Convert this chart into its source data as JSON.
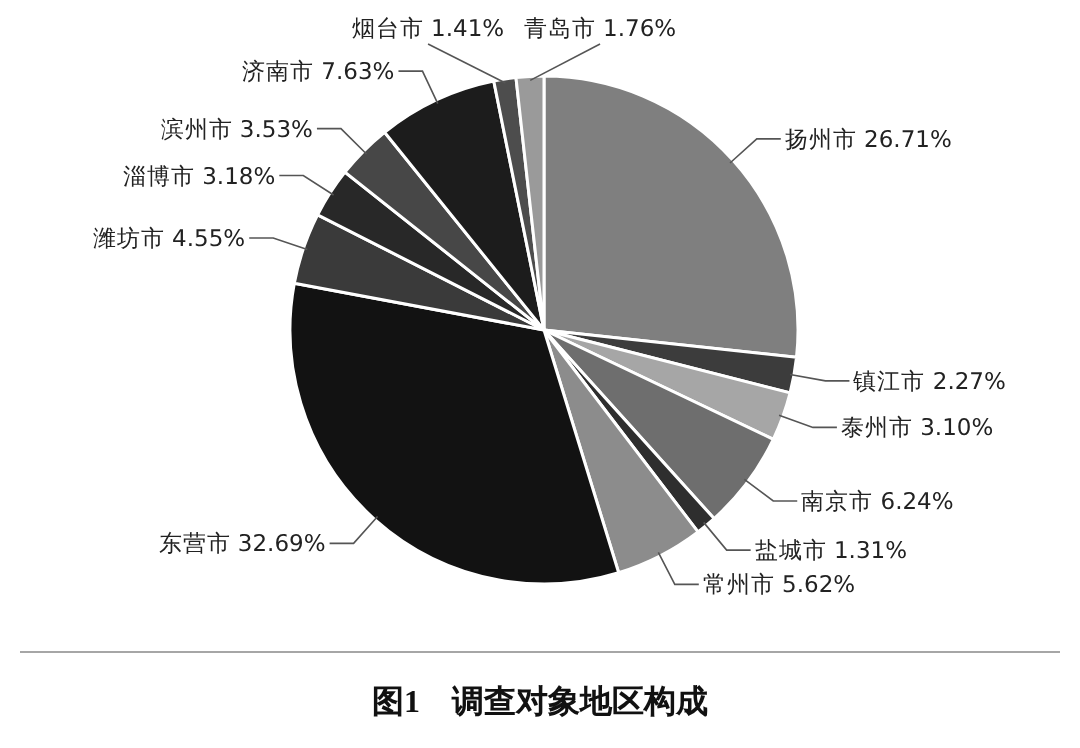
{
  "chart_data": {
    "type": "pie",
    "title": "图1　调查对象地区构成",
    "categories": [
      "扬州市",
      "镇江市",
      "泰州市",
      "南京市",
      "盐城市",
      "常州市",
      "东营市",
      "潍坊市",
      "淄博市",
      "滨州市",
      "济南市",
      "烟台市",
      "青岛市"
    ],
    "values": [
      26.71,
      2.27,
      3.1,
      6.24,
      1.31,
      5.62,
      32.69,
      4.55,
      3.18,
      3.53,
      7.63,
      1.41,
      1.76
    ],
    "value_labels": [
      "26.71%",
      "2.27%",
      "3.10%",
      "6.24%",
      "1.31%",
      "5.62%",
      "32.69%",
      "4.55%",
      "3.18%",
      "3.53%",
      "7.63%",
      "1.41%",
      "1.76%"
    ],
    "colors": [
      "#7f7f7f",
      "#3c3c3c",
      "#a6a6a6",
      "#6e6e6e",
      "#2e2e2e",
      "#8c8c8c",
      "#121212",
      "#3a3a3a",
      "#282828",
      "#474747",
      "#1c1c1c",
      "#4d4d4d",
      "#9a9a9a"
    ]
  }
}
